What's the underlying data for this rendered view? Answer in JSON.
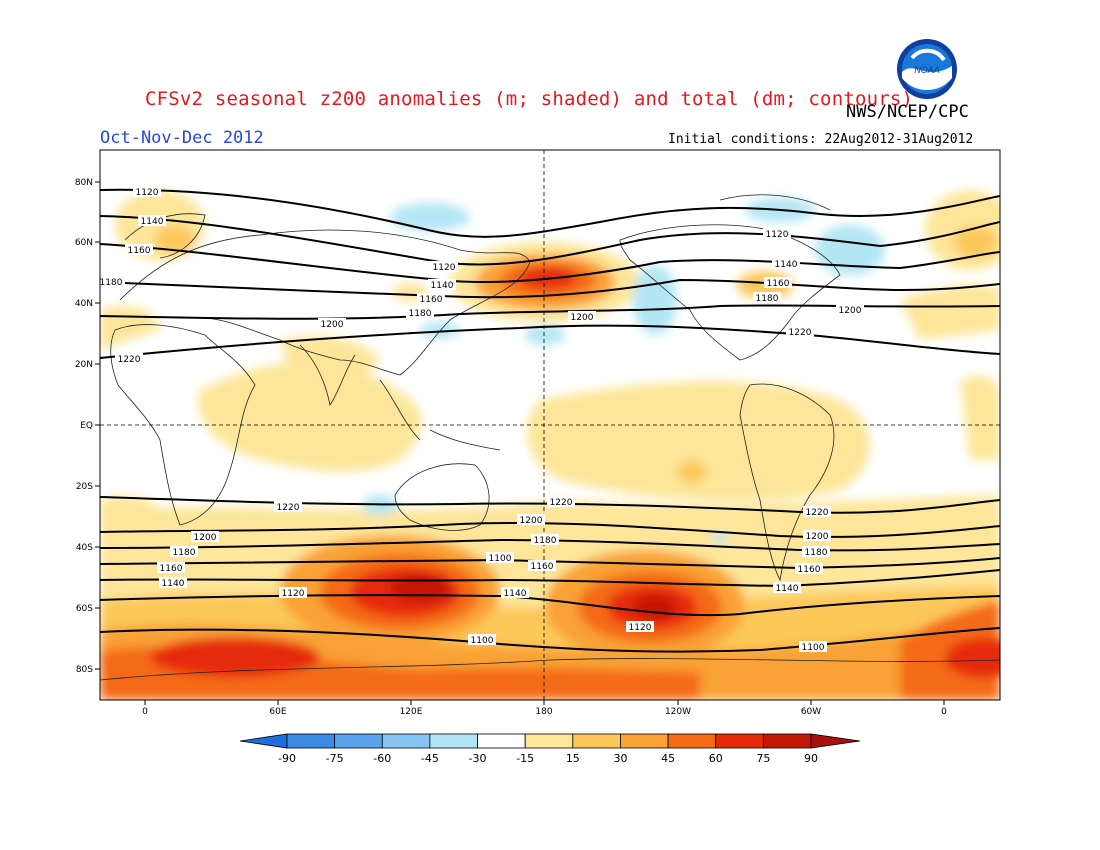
{
  "header": {
    "title": "CFSv2 seasonal z200 anomalies (m; shaded) and total (dm; contours)",
    "agency": "NWS/NCEP/CPC",
    "season": "Oct-Nov-Dec 2012",
    "initial_conditions": "Initial conditions: 22Aug2012-31Aug2012",
    "logo_text": "NOAA"
  },
  "axes": {
    "lat_labels": [
      "80N",
      "60N",
      "40N",
      "20N",
      "EQ",
      "20S",
      "40S",
      "60S",
      "80S"
    ],
    "lon_labels": [
      "0",
      "60E",
      "120E",
      "180",
      "120W",
      "60W",
      "0"
    ]
  },
  "colorbar": {
    "ticks": [
      "-90",
      "-75",
      "-60",
      "-45",
      "-30",
      "-15",
      "15",
      "30",
      "45",
      "60",
      "75",
      "90"
    ],
    "colors": [
      "#1e6fd9",
      "#3b8ae4",
      "#5aa3ec",
      "#86c4f2",
      "#b3e6f4",
      "#ffffff",
      "#fde69a",
      "#fcc85a",
      "#f9a236",
      "#f46a14",
      "#e62a08",
      "#c41705",
      "#a80f0f"
    ]
  },
  "contour_labels": [
    "1120",
    "1140",
    "1160",
    "1180",
    "1200",
    "1220",
    "1120",
    "1140",
    "1160",
    "1180",
    "1200",
    "1120",
    "1140",
    "1160",
    "1180",
    "1200",
    "1220",
    "1220",
    "1200",
    "1180",
    "1160",
    "1140",
    "1120",
    "1100",
    "1220",
    "1200",
    "1180",
    "1160",
    "1140",
    "1120",
    "1100",
    "1220",
    "1200",
    "1180",
    "1160",
    "1140",
    "1100"
  ]
}
